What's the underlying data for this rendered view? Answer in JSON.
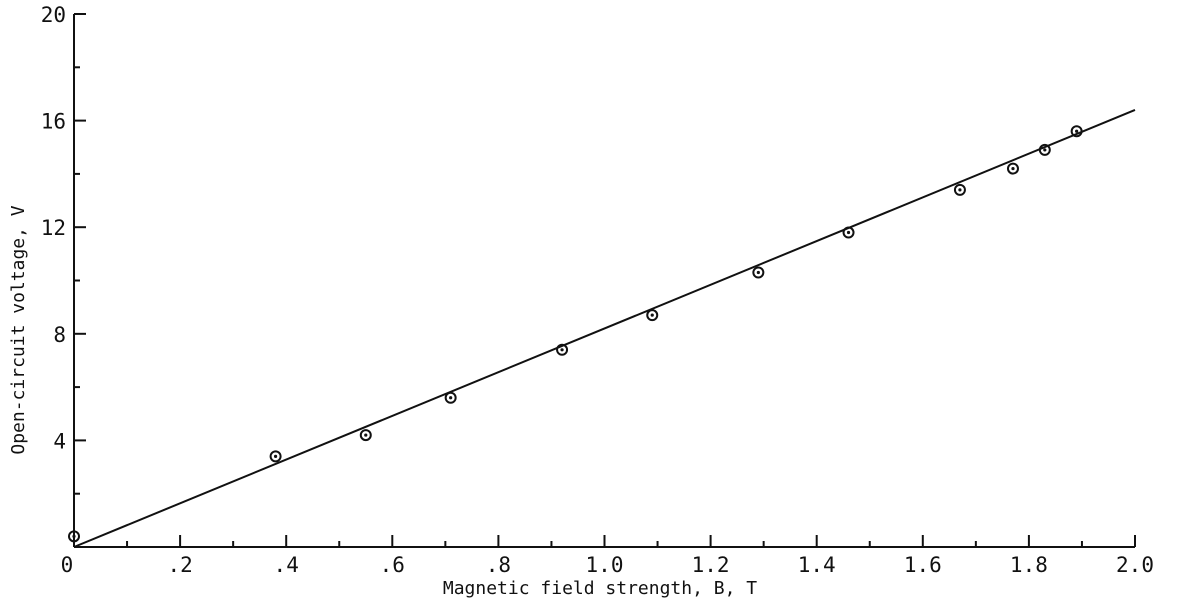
{
  "chart_data": {
    "type": "scatter",
    "title": "",
    "xlabel": "Magnetic field strength, B, T",
    "ylabel": "Open-circuit voltage, V",
    "xlim": [
      0,
      2.0
    ],
    "ylim": [
      0,
      20
    ],
    "x_ticks": [
      {
        "value": 0,
        "label": "0"
      },
      {
        "value": 0.2,
        "label": ".2"
      },
      {
        "value": 0.4,
        "label": ".4"
      },
      {
        "value": 0.6,
        "label": ".6"
      },
      {
        "value": 0.8,
        "label": ".8"
      },
      {
        "value": 1.0,
        "label": "1.0"
      },
      {
        "value": 1.2,
        "label": "1.2"
      },
      {
        "value": 1.4,
        "label": "1.4"
      },
      {
        "value": 1.6,
        "label": "1.6"
      },
      {
        "value": 1.8,
        "label": "1.8"
      },
      {
        "value": 2.0,
        "label": "2.0"
      }
    ],
    "y_ticks": [
      {
        "value": 4,
        "label": "4"
      },
      {
        "value": 8,
        "label": "8"
      },
      {
        "value": 12,
        "label": "12"
      },
      {
        "value": 16,
        "label": "16"
      },
      {
        "value": 20,
        "label": "20"
      }
    ],
    "x_minor_ticks": [
      0.1,
      0.3,
      0.5,
      0.7,
      0.9,
      1.1,
      1.3,
      1.5,
      1.7,
      1.9
    ],
    "y_minor_ticks": [
      2,
      6,
      10,
      14,
      18
    ],
    "grid": false,
    "series": [
      {
        "points": [
          {
            "x": 0.0,
            "y": 0.4
          },
          {
            "x": 0.38,
            "y": 3.4
          },
          {
            "x": 0.55,
            "y": 4.2
          },
          {
            "x": 0.71,
            "y": 5.6
          },
          {
            "x": 0.92,
            "y": 7.4
          },
          {
            "x": 1.09,
            "y": 8.7
          },
          {
            "x": 1.29,
            "y": 10.3
          },
          {
            "x": 1.46,
            "y": 11.8
          },
          {
            "x": 1.67,
            "y": 13.4
          },
          {
            "x": 1.77,
            "y": 14.2
          },
          {
            "x": 1.83,
            "y": 14.9
          },
          {
            "x": 1.89,
            "y": 15.6
          }
        ]
      }
    ],
    "fit_line": {
      "x": [
        0,
        2.0
      ],
      "y": [
        0,
        16.4
      ]
    }
  }
}
